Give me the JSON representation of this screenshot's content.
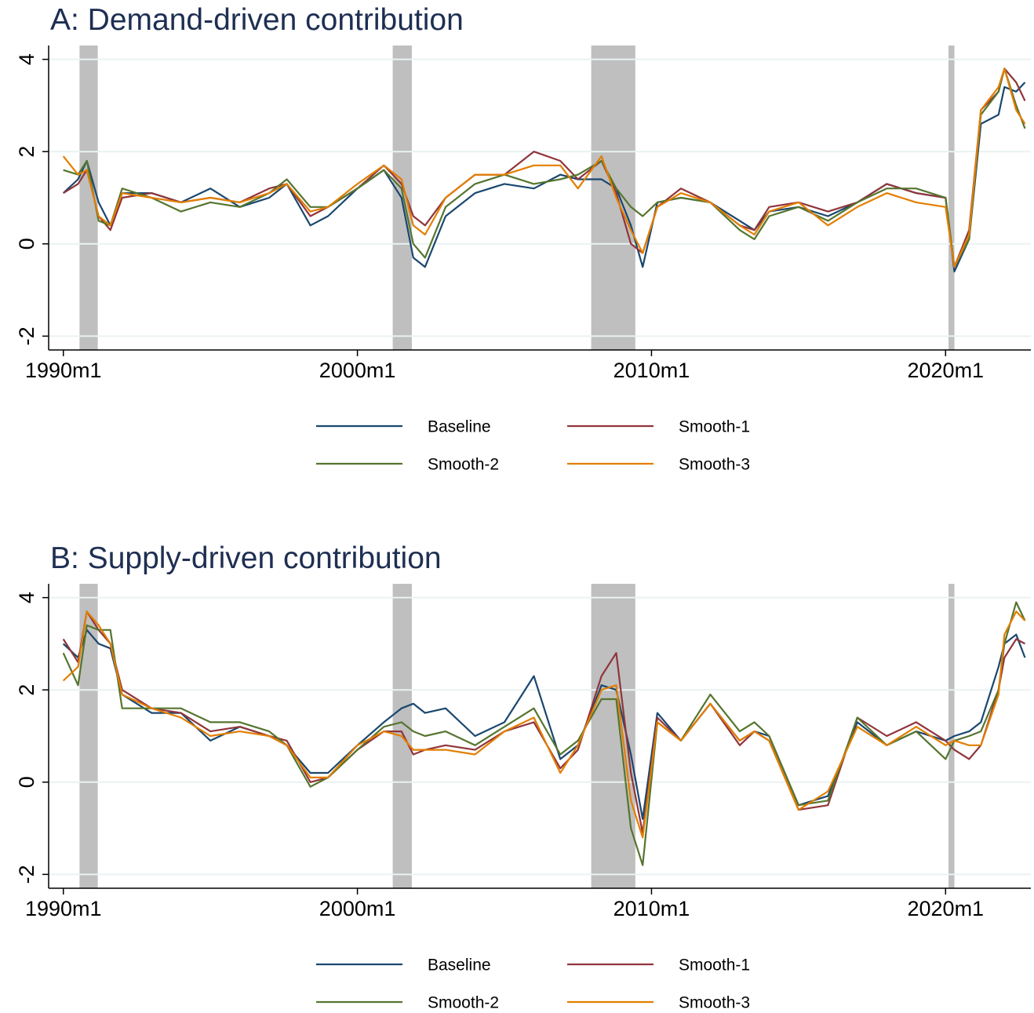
{
  "chart_data": [
    {
      "type": "line",
      "title": "A: Demand-driven contribution",
      "x": [
        1990,
        1990.5,
        1990.8,
        1991.2,
        1991.6,
        1992,
        1993,
        1994,
        1995,
        1996,
        1997,
        1997.6,
        1998.4,
        1999,
        2000,
        2000.9,
        2001.5,
        2001.9,
        2002.3,
        2003,
        2004,
        2005,
        2006,
        2006.9,
        2007.5,
        2008.3,
        2008.8,
        2009.3,
        2009.7,
        2010.2,
        2011,
        2012,
        2013,
        2013.5,
        2014,
        2015,
        2016,
        2017,
        2018,
        2019,
        2020,
        2020.3,
        2020.8,
        2021.2,
        2021.8,
        2022,
        2022.4,
        2022.7
      ],
      "series": [
        {
          "name": "Baseline",
          "color": "#1a476f",
          "values": [
            1.1,
            1.4,
            1.8,
            0.9,
            0.4,
            1.1,
            1.1,
            0.9,
            1.2,
            0.8,
            1.0,
            1.3,
            0.4,
            0.6,
            1.2,
            1.6,
            1.0,
            -0.3,
            -0.5,
            0.6,
            1.1,
            1.3,
            1.2,
            1.5,
            1.4,
            1.4,
            1.2,
            0.4,
            -0.5,
            0.9,
            1.0,
            0.9,
            0.5,
            0.3,
            0.7,
            0.8,
            0.6,
            0.9,
            1.3,
            1.1,
            1.0,
            -0.6,
            0.1,
            2.6,
            2.8,
            3.4,
            3.3,
            3.5
          ]
        },
        {
          "name": "Smooth-1",
          "color": "#90353b",
          "values": [
            1.1,
            1.3,
            1.6,
            0.6,
            0.3,
            1.0,
            1.1,
            0.9,
            1.0,
            0.9,
            1.2,
            1.3,
            0.6,
            0.8,
            1.2,
            1.7,
            1.3,
            0.6,
            0.4,
            1.0,
            1.5,
            1.5,
            2.0,
            1.8,
            1.4,
            1.8,
            1.1,
            0.0,
            -0.2,
            0.8,
            1.2,
            0.9,
            0.4,
            0.3,
            0.8,
            0.9,
            0.7,
            0.9,
            1.3,
            1.1,
            1.0,
            -0.5,
            0.3,
            2.9,
            3.3,
            3.8,
            3.5,
            3.1
          ]
        },
        {
          "name": "Smooth-2",
          "color": "#55752f",
          "values": [
            1.6,
            1.5,
            1.8,
            0.5,
            0.4,
            1.2,
            1.0,
            0.7,
            0.9,
            0.8,
            1.1,
            1.4,
            0.8,
            0.8,
            1.2,
            1.6,
            1.2,
            0.0,
            -0.3,
            0.8,
            1.3,
            1.5,
            1.3,
            1.4,
            1.5,
            1.8,
            1.2,
            0.8,
            0.6,
            0.9,
            1.0,
            0.9,
            0.3,
            0.1,
            0.6,
            0.8,
            0.5,
            0.9,
            1.2,
            1.2,
            1.0,
            -0.5,
            0.1,
            2.8,
            3.3,
            3.8,
            3.0,
            2.5
          ]
        },
        {
          "name": "Smooth-3",
          "color": "#e37e00",
          "values": [
            1.9,
            1.5,
            1.6,
            0.6,
            0.4,
            1.1,
            1.0,
            0.9,
            1.0,
            0.9,
            1.1,
            1.3,
            0.7,
            0.8,
            1.3,
            1.7,
            1.4,
            0.4,
            0.2,
            1.0,
            1.5,
            1.5,
            1.7,
            1.7,
            1.2,
            1.9,
            1.0,
            0.3,
            -0.2,
            0.8,
            1.1,
            0.9,
            0.4,
            0.2,
            0.7,
            0.9,
            0.4,
            0.8,
            1.1,
            0.9,
            0.8,
            -0.5,
            0.2,
            2.9,
            3.4,
            3.8,
            2.9,
            2.6
          ]
        }
      ],
      "xlim": [
        1989.5,
        2022.9
      ],
      "xticks": [
        {
          "value": 1990,
          "label": "1990m1"
        },
        {
          "value": 2000,
          "label": "2000m1"
        },
        {
          "value": 2010,
          "label": "2010m1"
        },
        {
          "value": 2020,
          "label": "2020m1"
        }
      ],
      "ylim": [
        -2.3,
        4.3
      ],
      "yticks": [
        -2,
        0,
        2,
        4
      ],
      "grid": true,
      "shaded_periods": [
        [
          1990.55,
          1991.17
        ],
        [
          2001.2,
          2001.85
        ],
        [
          2007.95,
          2009.45
        ],
        [
          2020.1,
          2020.3
        ]
      ],
      "shade_color": "#bfbfbf"
    },
    {
      "type": "line",
      "title": "B: Supply-driven contribution",
      "x": [
        1990,
        1990.5,
        1990.8,
        1991.2,
        1991.6,
        1992,
        1993,
        1994,
        1995,
        1996,
        1997,
        1997.6,
        1998.4,
        1999,
        2000,
        2000.9,
        2001.5,
        2001.9,
        2002.3,
        2003,
        2004,
        2005,
        2006,
        2006.9,
        2007.5,
        2008.3,
        2008.8,
        2009.3,
        2009.7,
        2010.2,
        2011,
        2012,
        2013,
        2013.5,
        2014,
        2015,
        2016,
        2017,
        2018,
        2019,
        2020,
        2020.3,
        2020.8,
        2021.2,
        2021.8,
        2022,
        2022.4,
        2022.7
      ],
      "series": [
        {
          "name": "Baseline",
          "color": "#1a476f",
          "values": [
            3.0,
            2.7,
            3.3,
            3.0,
            2.9,
            1.9,
            1.5,
            1.5,
            0.9,
            1.2,
            1.0,
            0.8,
            0.2,
            0.2,
            0.8,
            1.3,
            1.6,
            1.7,
            1.5,
            1.6,
            1.0,
            1.3,
            2.3,
            0.5,
            0.8,
            2.1,
            2.0,
            0.6,
            -0.8,
            1.5,
            0.9,
            1.7,
            0.9,
            1.1,
            1.0,
            -0.5,
            -0.3,
            1.3,
            0.8,
            1.1,
            0.9,
            1.0,
            1.1,
            1.3,
            2.5,
            3.0,
            3.2,
            2.7
          ]
        },
        {
          "name": "Smooth-1",
          "color": "#90353b",
          "values": [
            3.1,
            2.6,
            3.7,
            3.3,
            3.0,
            2.0,
            1.6,
            1.5,
            1.1,
            1.2,
            1.0,
            0.9,
            0.0,
            0.1,
            0.7,
            1.1,
            1.1,
            0.6,
            0.7,
            0.8,
            0.7,
            1.1,
            1.3,
            0.3,
            0.7,
            2.3,
            2.8,
            0.2,
            -1.1,
            1.4,
            0.9,
            1.7,
            0.8,
            1.1,
            0.9,
            -0.6,
            -0.5,
            1.4,
            1.0,
            1.3,
            0.9,
            0.7,
            0.5,
            0.8,
            2.0,
            2.7,
            3.1,
            3.0
          ]
        },
        {
          "name": "Smooth-2",
          "color": "#55752f",
          "values": [
            2.8,
            2.1,
            3.4,
            3.3,
            3.3,
            1.6,
            1.6,
            1.6,
            1.3,
            1.3,
            1.1,
            0.8,
            -0.1,
            0.1,
            0.7,
            1.2,
            1.3,
            1.1,
            1.0,
            1.1,
            0.8,
            1.2,
            1.6,
            0.6,
            0.9,
            1.8,
            1.8,
            -1.0,
            -1.8,
            1.3,
            0.9,
            1.9,
            1.1,
            1.3,
            1.0,
            -0.5,
            -0.4,
            1.4,
            0.8,
            1.1,
            0.5,
            0.9,
            1.0,
            1.1,
            2.0,
            3.0,
            3.9,
            3.5
          ]
        },
        {
          "name": "Smooth-3",
          "color": "#e37e00",
          "values": [
            2.2,
            2.5,
            3.7,
            3.4,
            3.0,
            1.9,
            1.6,
            1.4,
            1.0,
            1.1,
            1.0,
            0.8,
            0.1,
            0.1,
            0.8,
            1.1,
            1.0,
            0.7,
            0.7,
            0.7,
            0.6,
            1.1,
            1.4,
            0.2,
            0.8,
            2.0,
            2.1,
            -0.4,
            -1.2,
            1.3,
            0.9,
            1.7,
            0.9,
            1.1,
            0.9,
            -0.6,
            -0.2,
            1.2,
            0.8,
            1.2,
            0.8,
            0.9,
            0.8,
            0.8,
            1.9,
            3.2,
            3.7,
            3.5
          ]
        }
      ],
      "xlim": [
        1989.5,
        2022.9
      ],
      "xticks": [
        {
          "value": 1990,
          "label": "1990m1"
        },
        {
          "value": 2000,
          "label": "2000m1"
        },
        {
          "value": 2010,
          "label": "2010m1"
        },
        {
          "value": 2020,
          "label": "2020m1"
        }
      ],
      "ylim": [
        -2.3,
        4.3
      ],
      "yticks": [
        -2,
        0,
        2,
        4
      ],
      "grid": true,
      "shaded_periods": [
        [
          1990.55,
          1991.17
        ],
        [
          2001.2,
          2001.85
        ],
        [
          2007.95,
          2009.45
        ],
        [
          2020.1,
          2020.3
        ]
      ],
      "shade_color": "#bfbfbf"
    }
  ]
}
